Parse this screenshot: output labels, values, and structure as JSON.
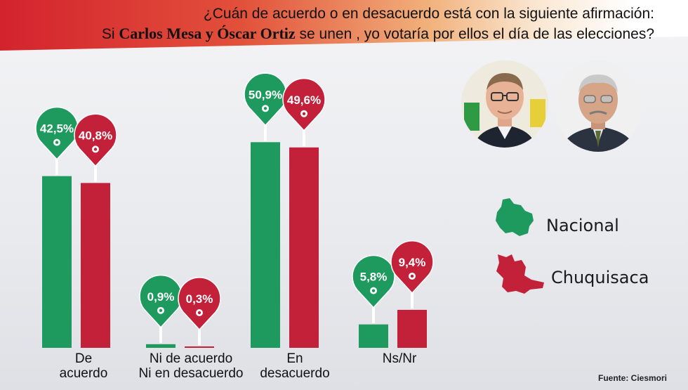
{
  "header": {
    "line1": "¿Cuán de acuerdo o en desacuerdo está con la siguiente afirmación:",
    "line2_prefix": "Si ",
    "line2_bold": "Carlos Mesa y Óscar Ortiz",
    "line2_suffix": " se unen , yo votaría por ellos el día de las elecciones?"
  },
  "legend": {
    "nacional": "Nacional",
    "chuquisaca": "Chuquisaca"
  },
  "source": "Fuente: Ciesmori",
  "chart_data": {
    "type": "bar",
    "categories": [
      "De acuerdo",
      "Ni de acuerdo Ni en desacuerdo",
      "En desacuerdo",
      "Ns/Nr"
    ],
    "category_lines": [
      [
        "De",
        "acuerdo"
      ],
      [
        "Ni de acuerdo",
        "Ni en desacuerdo"
      ],
      [
        "En",
        "desacuerdo"
      ],
      [
        "Ns/Nr"
      ]
    ],
    "series": [
      {
        "name": "Nacional",
        "values": [
          42.5,
          0.9,
          50.9,
          5.8
        ],
        "labels": [
          "42,5%",
          "0,9%",
          "50,9%",
          "5,8%"
        ],
        "color": "#1f9a5e"
      },
      {
        "name": "Chuquisaca",
        "values": [
          40.8,
          0.3,
          49.6,
          9.4
        ],
        "labels": [
          "40,8%",
          "0,3%",
          "49,6%",
          "9,4%"
        ],
        "color": "#c3203a"
      }
    ],
    "colors": {
      "nacional": "#1f9a5e",
      "chuquisaca": "#c3203a",
      "header_red": "#d3232e"
    }
  }
}
